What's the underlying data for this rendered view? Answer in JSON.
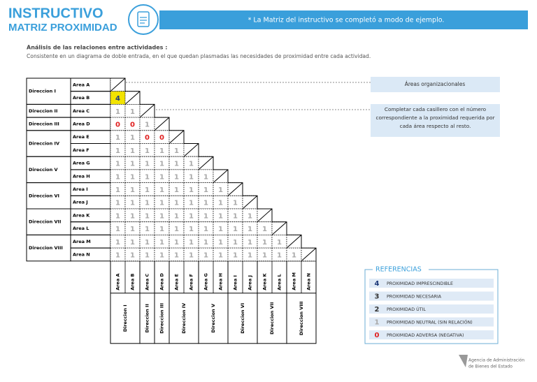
{
  "header": {
    "title": "INSTRUCTIVO",
    "subtitle": "MATRIZ PROXIMIDAD",
    "note": "* La Matriz del instructivo se completó a modo de ejemplo."
  },
  "intro": {
    "heading": "Análisis de las relaciones entre actividades :",
    "text": "Consistente en un diagrama de doble entrada, en el que quedan plasmadas las necesidades de proximidad entre cada actividad."
  },
  "matrix": {
    "directions": [
      {
        "label": "Direccion I",
        "areas": [
          "Area A",
          "Area B"
        ]
      },
      {
        "label": "Direccion II",
        "areas": [
          "Area C"
        ]
      },
      {
        "label": "Direccion III",
        "areas": [
          "Area D"
        ]
      },
      {
        "label": "Direccion  IV",
        "areas": [
          "Area E",
          "Area F"
        ]
      },
      {
        "label": "Direccion V",
        "areas": [
          "Area G",
          "Area H"
        ]
      },
      {
        "label": "Direccion VI",
        "areas": [
          "Area I",
          "Area J"
        ]
      },
      {
        "label": "Direccion VII",
        "areas": [
          "Area K",
          "Area L"
        ]
      },
      {
        "label": "Direccion VIII",
        "areas": [
          "Area M",
          "Area N"
        ]
      }
    ],
    "values": [
      [],
      [
        4
      ],
      [
        1,
        1
      ],
      [
        0,
        0,
        1
      ],
      [
        1,
        1,
        0,
        0
      ],
      [
        1,
        1,
        1,
        1,
        1
      ],
      [
        1,
        1,
        1,
        1,
        1,
        1
      ],
      [
        1,
        1,
        1,
        1,
        1,
        1,
        1
      ],
      [
        1,
        1,
        1,
        1,
        1,
        1,
        1,
        1
      ],
      [
        1,
        1,
        1,
        1,
        1,
        1,
        1,
        1,
        1
      ],
      [
        1,
        1,
        1,
        1,
        1,
        1,
        1,
        1,
        1,
        1
      ],
      [
        1,
        1,
        1,
        1,
        1,
        1,
        1,
        1,
        1,
        1,
        1
      ],
      [
        1,
        1,
        1,
        1,
        1,
        1,
        1,
        1,
        1,
        1,
        1,
        1
      ],
      [
        1,
        1,
        1,
        1,
        1,
        1,
        1,
        1,
        1,
        1,
        1,
        1,
        1
      ]
    ]
  },
  "callouts": [
    "Áreas organizacionales",
    "Completar cada casillero con el número correspondiente a la proximidad requerida por cada área respecto al resto."
  ],
  "references": {
    "title": "REFERENCIAS",
    "items": [
      {
        "value": 4,
        "label": "PROXIMIDAD IMPRESCINDIBLE",
        "color": "#1f3a7a",
        "highlight": "#f2e300"
      },
      {
        "value": 3,
        "label": "PROXIMIDAD NECESARIA",
        "color": "#333333"
      },
      {
        "value": 2,
        "label": "PROXIMIDAD ÚTIL",
        "color": "#333333"
      },
      {
        "value": 1,
        "label": "PROXIMIDAD NEUTRAL (SIN RELACIÓN)",
        "color": "#a8a8a8"
      },
      {
        "value": 0,
        "label": "PROXIMIDAD ADVERSA (NEGATIVA)",
        "color": "#e02020"
      }
    ]
  },
  "footer": {
    "line1": "Agencia de Administración",
    "line2": "de Bienes del Estado"
  }
}
